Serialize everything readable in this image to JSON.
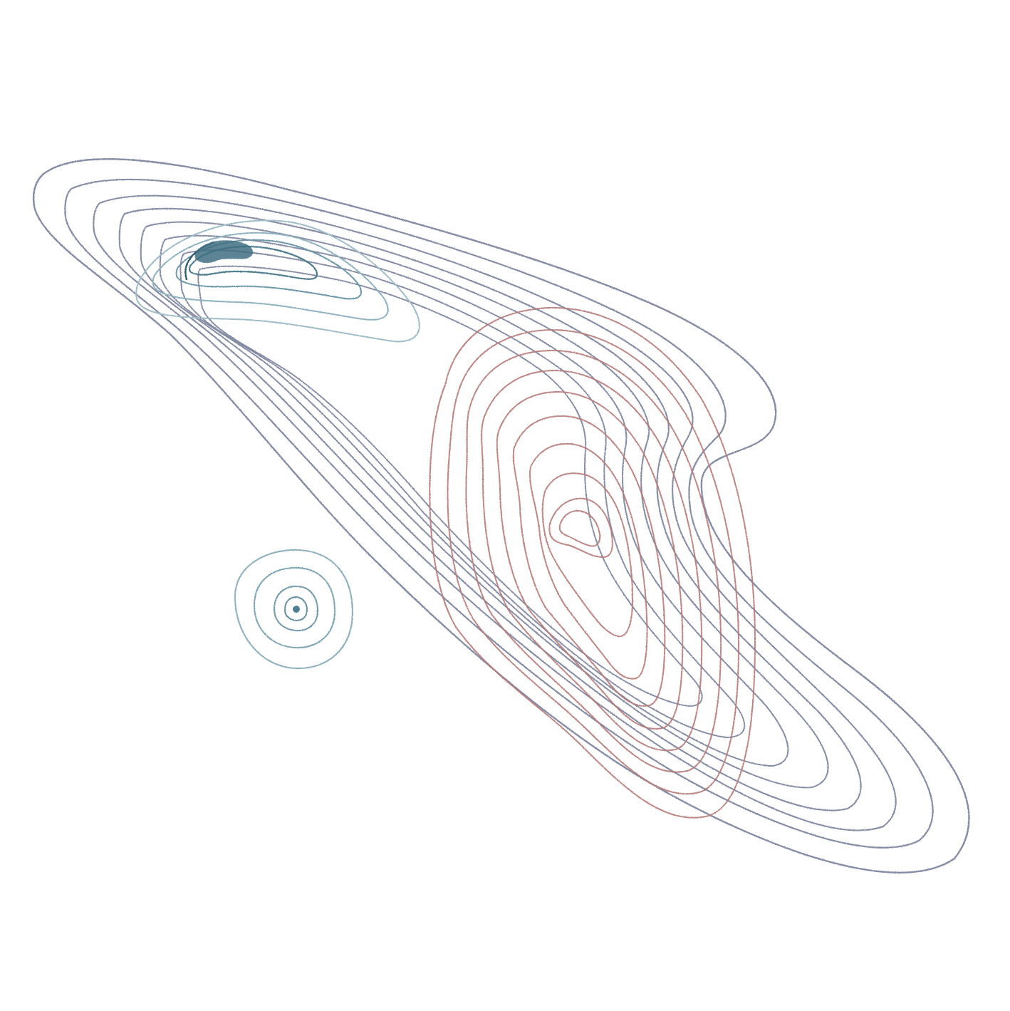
{
  "image": {
    "description_visible_text": "",
    "background_color": "#ffffff",
    "groups": [
      {
        "name": "gray-blue-elongated-contours",
        "color": "#6f7893",
        "ring_count": 8
      },
      {
        "name": "teal-upper-left-contours",
        "color": "#4f7d8e",
        "ring_count": 5
      },
      {
        "name": "teal-small-circular-contours",
        "color": "#6d98a6",
        "ring_count": 4
      },
      {
        "name": "rose-contours",
        "color": "#b47a78",
        "ring_count": 10
      }
    ]
  }
}
